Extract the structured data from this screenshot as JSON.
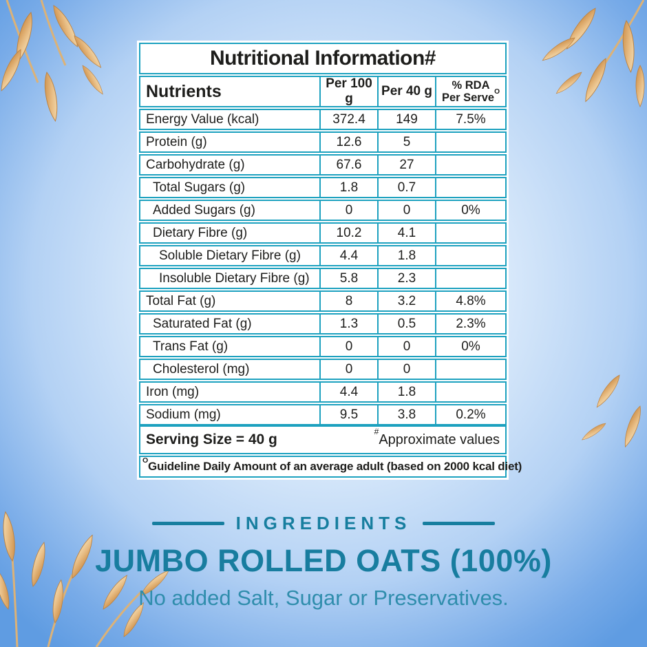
{
  "colors": {
    "table_border_teal": "#1ca1bf",
    "table_text_black": "#1d1d1b",
    "heading_teal": "#187d9f",
    "tagline_teal": "#2f8dac",
    "background_blue_edge": "#5f9ce2",
    "background_blue_center": "#f1f7fe",
    "oat_grain_gold": "#e2b277"
  },
  "decorations": [
    "oat-grains-top-left",
    "oat-grains-top-right",
    "oat-grains-right-middle",
    "oat-grains-bottom-left"
  ],
  "table": {
    "title": "Nutritional Information#",
    "col_nutrients": "Nutrients",
    "col_per100": "Per 100 g",
    "col_per40": "Per 40 g",
    "col_rda_line1": "% RDA",
    "col_rda_line2": "Per Serve",
    "col_rda_sup": "O",
    "rows": [
      {
        "label": "Energy Value (kcal)",
        "per100": "372.4",
        "per40": "149",
        "rda": "7.5%",
        "indent": 0
      },
      {
        "label": "Protein (g)",
        "per100": "12.6",
        "per40": "5",
        "rda": "",
        "indent": 0
      },
      {
        "label": "Carbohydrate (g)",
        "per100": "67.6",
        "per40": "27",
        "rda": "",
        "indent": 0
      },
      {
        "label": "Total Sugars (g)",
        "per100": "1.8",
        "per40": "0.7",
        "rda": "",
        "indent": 1
      },
      {
        "label": "Added Sugars (g)",
        "per100": "0",
        "per40": "0",
        "rda": "0%",
        "indent": 1
      },
      {
        "label": "Dietary Fibre (g)",
        "per100": "10.2",
        "per40": "4.1",
        "rda": "",
        "indent": 1
      },
      {
        "label": "Soluble Dietary Fibre (g)",
        "per100": "4.4",
        "per40": "1.8",
        "rda": "",
        "indent": 2
      },
      {
        "label": "Insoluble Dietary Fibre (g)",
        "per100": "5.8",
        "per40": "2.3",
        "rda": "",
        "indent": 2
      },
      {
        "label": "Total Fat (g)",
        "per100": "8",
        "per40": "3.2",
        "rda": "4.8%",
        "indent": 0
      },
      {
        "label": "Saturated Fat (g)",
        "per100": "1.3",
        "per40": "0.5",
        "rda": "2.3%",
        "indent": 1
      },
      {
        "label": "Trans Fat (g)",
        "per100": "0",
        "per40": "0",
        "rda": "0%",
        "indent": 1
      },
      {
        "label": "Cholesterol (mg)",
        "per100": "0",
        "per40": "0",
        "rda": "",
        "indent": 1
      },
      {
        "label": "Iron (mg)",
        "per100": "4.4",
        "per40": "1.8",
        "rda": "",
        "indent": 0
      },
      {
        "label": "Sodium (mg)",
        "per100": "9.5",
        "per40": "3.8",
        "rda": "0.2%",
        "indent": 0
      }
    ],
    "serving_size": "Serving Size = 40 g",
    "approx_sup": "#",
    "approx_note": "Approximate values",
    "guideline_sup": "O",
    "guideline_note": "Guideline Daily Amount of an average adult (based on 2000 kcal diet)"
  },
  "footer": {
    "ingredients_heading": "INGREDIENTS",
    "product_name": "JUMBO ROLLED OATS (100%)",
    "tagline": "No added Salt, Sugar or Preservatives."
  }
}
